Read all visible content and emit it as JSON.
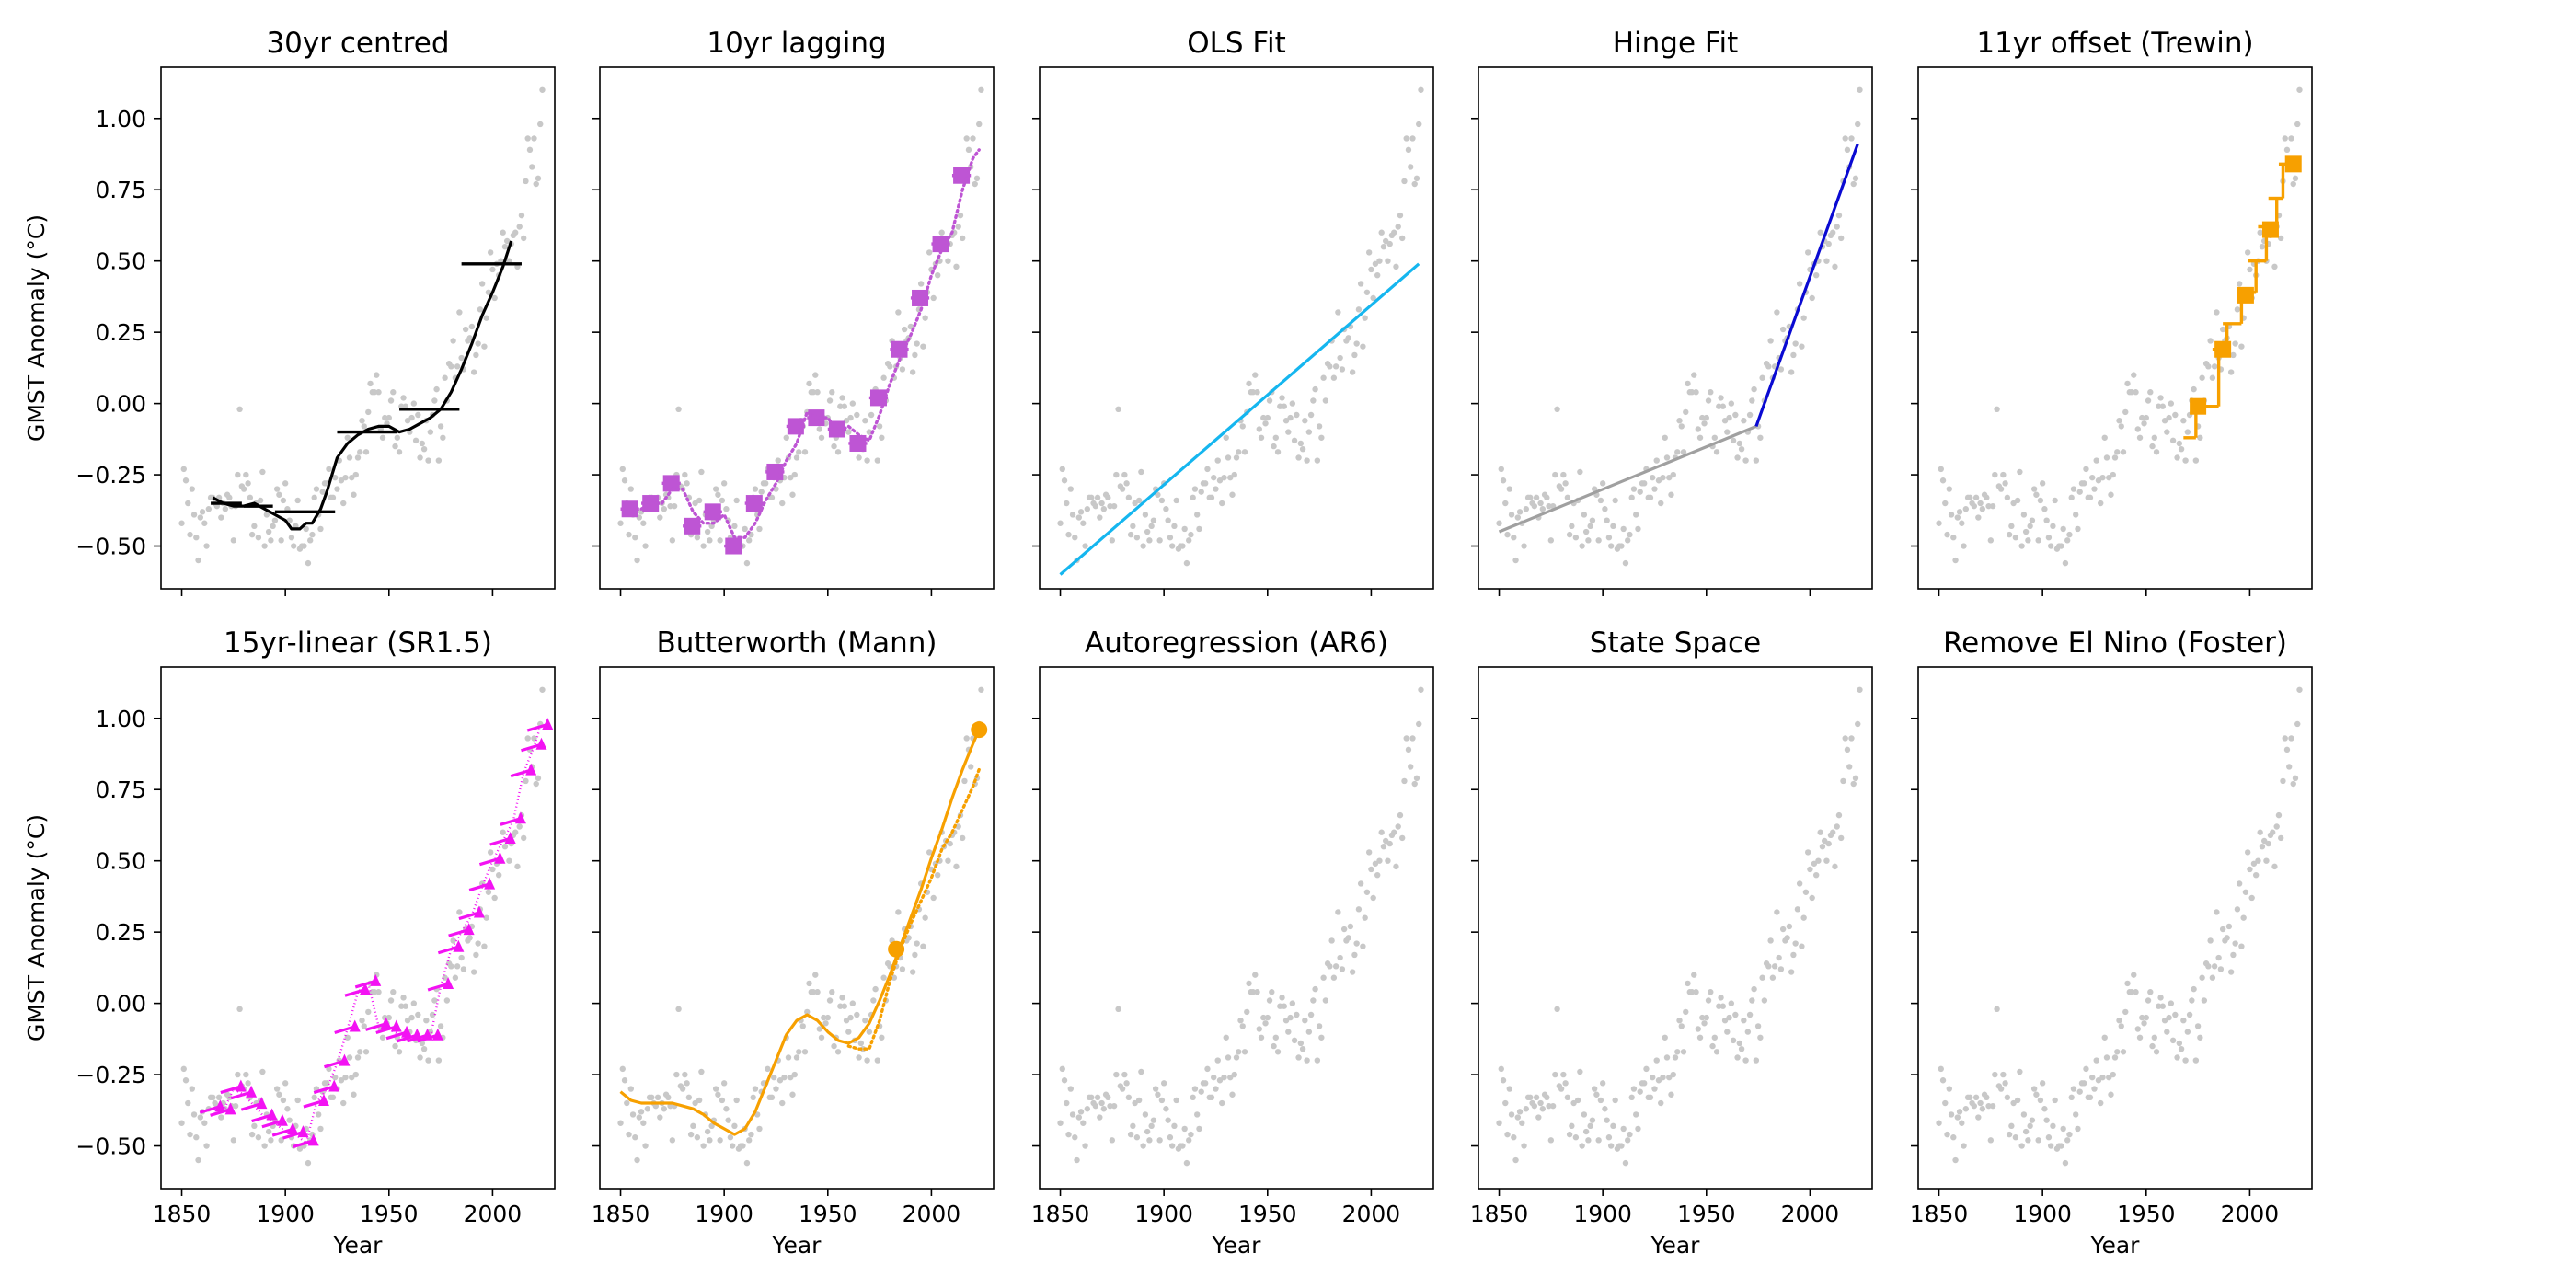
{
  "chart_data": {
    "type": "line",
    "layout": "2x5 grid, shared x and y axes",
    "xlabel": "Year",
    "ylabel": "GMST Anomaly (°C)",
    "xlim": [
      1840,
      2030
    ],
    "ylim": [
      -0.65,
      1.18
    ],
    "xticks": [
      1850,
      1900,
      1950,
      2000
    ],
    "yticks": [
      -0.5,
      -0.25,
      0.0,
      0.25,
      0.5,
      0.75,
      1.0
    ],
    "xtick_labels": [
      "1850",
      "1900",
      "1950",
      "2000"
    ],
    "ytick_labels": [
      "−0.50",
      "−0.25",
      "0.00",
      "0.25",
      "0.50",
      "0.75",
      "1.00"
    ],
    "observations": {
      "style": "light-grey dots, shown in every panel",
      "color": "#c8c8c8",
      "x_start": 1850,
      "y": [
        -0.42,
        -0.23,
        -0.27,
        -0.35,
        -0.46,
        -0.3,
        -0.39,
        -0.47,
        -0.55,
        -0.4,
        -0.38,
        -0.42,
        -0.5,
        -0.37,
        -0.33,
        -0.33,
        -0.35,
        -0.36,
        -0.33,
        -0.4,
        -0.35,
        -0.37,
        -0.32,
        -0.33,
        -0.36,
        -0.48,
        -0.36,
        -0.25,
        -0.02,
        -0.29,
        -0.3,
        -0.25,
        -0.28,
        -0.33,
        -0.46,
        -0.43,
        -0.35,
        -0.47,
        -0.34,
        -0.24,
        -0.5,
        -0.39,
        -0.45,
        -0.48,
        -0.43,
        -0.41,
        -0.3,
        -0.32,
        -0.48,
        -0.34,
        -0.28,
        -0.37,
        -0.41,
        -0.47,
        -0.5,
        -0.43,
        -0.34,
        -0.51,
        -0.5,
        -0.5,
        -0.44,
        -0.56,
        -0.48,
        -0.46,
        -0.33,
        -0.3,
        -0.39,
        -0.44,
        -0.31,
        -0.28,
        -0.28,
        -0.23,
        -0.33,
        -0.33,
        -0.26,
        -0.3,
        -0.2,
        -0.27,
        -0.35,
        -0.26,
        -0.12,
        -0.19,
        -0.26,
        -0.32,
        -0.25,
        -0.19,
        -0.17,
        -0.06,
        -0.08,
        -0.17,
        -0.03,
        0.07,
        0.04,
        0.04,
        0.1,
        0.04,
        -0.09,
        -0.12,
        -0.05,
        -0.07,
        -0.05,
        0.01,
        0.04,
        -0.15,
        -0.12,
        -0.17,
        -0.01,
        0.02,
        -0.01,
        -0.06,
        -0.1,
        -0.05,
        0.0,
        -0.13,
        -0.04,
        -0.19,
        -0.14,
        -0.16,
        -0.06,
        -0.2,
        -0.1,
        -0.04,
        0.01,
        0.05,
        -0.2,
        -0.08,
        -0.12,
        0.09,
        0.01,
        0.14,
        0.13,
        0.22,
        0.09,
        0.13,
        0.32,
        0.16,
        0.12,
        0.26,
        0.22,
        0.23,
        0.27,
        0.11,
        0.17,
        0.21,
        0.33,
        0.42,
        0.2,
        0.3,
        0.39,
        0.53,
        0.47,
        0.37,
        0.49,
        0.45,
        0.5,
        0.6,
        0.55,
        0.57,
        0.5,
        0.56,
        0.59,
        0.6,
        0.48,
        0.62,
        0.66,
        0.58,
        0.78,
        0.93,
        0.89,
        0.83,
        0.93,
        0.77,
        0.79,
        0.98,
        1.1
      ]
    },
    "panels": [
      {
        "title": "30yr centred",
        "color": "#000000",
        "series": [
          {
            "name": "centred 30yr means (period bars)",
            "kind": "hbar",
            "segments": [
              [
                1864,
                1879,
                -0.35
              ],
              [
                1880,
                1894,
                -0.36
              ],
              [
                1895,
                1924,
                -0.38
              ],
              [
                1925,
                1954,
                -0.1
              ],
              [
                1955,
                1984,
                -0.02
              ],
              [
                1985,
                2014,
                0.49
              ]
            ]
          },
          {
            "name": "running 30yr mean",
            "kind": "line",
            "x": [
              1865,
              1870,
              1875,
              1880,
              1885,
              1890,
              1895,
              1900,
              1903,
              1907,
              1910,
              1913,
              1917,
              1920,
              1925,
              1930,
              1935,
              1940,
              1945,
              1950,
              1955,
              1960,
              1965,
              1970,
              1975,
              1980,
              1985,
              1990,
              1995,
              2000,
              2005,
              2009
            ],
            "y": [
              -0.33,
              -0.35,
              -0.36,
              -0.36,
              -0.35,
              -0.37,
              -0.39,
              -0.41,
              -0.44,
              -0.44,
              -0.42,
              -0.42,
              -0.37,
              -0.31,
              -0.19,
              -0.14,
              -0.11,
              -0.09,
              -0.08,
              -0.08,
              -0.1,
              -0.09,
              -0.07,
              -0.05,
              -0.02,
              0.04,
              0.12,
              0.21,
              0.31,
              0.39,
              0.48,
              0.57
            ]
          }
        ]
      },
      {
        "title": "10yr lagging",
        "color": "#be55d4",
        "series": [
          {
            "name": "10yr lagging means",
            "kind": "hbar_with_square",
            "segments": [
              [
                1850,
                1859,
                -0.37
              ],
              [
                1860,
                1869,
                -0.35
              ],
              [
                1870,
                1879,
                -0.28
              ],
              [
                1880,
                1889,
                -0.43
              ],
              [
                1890,
                1899,
                -0.38
              ],
              [
                1900,
                1909,
                -0.5
              ],
              [
                1910,
                1919,
                -0.35
              ],
              [
                1920,
                1929,
                -0.24
              ],
              [
                1930,
                1939,
                -0.08
              ],
              [
                1940,
                1949,
                -0.05
              ],
              [
                1950,
                1959,
                -0.09
              ],
              [
                1960,
                1969,
                -0.14
              ],
              [
                1970,
                1979,
                0.02
              ],
              [
                1980,
                1989,
                0.19
              ],
              [
                1990,
                1999,
                0.37
              ],
              [
                2000,
                2009,
                0.56
              ],
              [
                2010,
                2019,
                0.8
              ]
            ]
          },
          {
            "name": "running 10yr mean (dotted)",
            "kind": "dotted",
            "x": [
              1860,
              1865,
              1870,
              1875,
              1880,
              1885,
              1890,
              1895,
              1900,
              1905,
              1910,
              1915,
              1920,
              1925,
              1930,
              1935,
              1940,
              1945,
              1950,
              1955,
              1960,
              1965,
              1970,
              1975,
              1980,
              1985,
              1990,
              1995,
              2000,
              2005,
              2010,
              2015,
              2020,
              2023
            ],
            "y": [
              -0.37,
              -0.35,
              -0.35,
              -0.3,
              -0.3,
              -0.38,
              -0.42,
              -0.42,
              -0.39,
              -0.47,
              -0.47,
              -0.42,
              -0.34,
              -0.28,
              -0.2,
              -0.14,
              -0.03,
              -0.05,
              -0.05,
              -0.1,
              -0.08,
              -0.11,
              -0.13,
              -0.04,
              0.07,
              0.16,
              0.24,
              0.33,
              0.45,
              0.54,
              0.6,
              0.75,
              0.86,
              0.89
            ]
          }
        ]
      },
      {
        "title": "OLS Fit",
        "color": "#15b6ef",
        "series": [
          {
            "name": "OLS trend",
            "kind": "line",
            "x": [
              1850,
              2023
            ],
            "y": [
              -0.6,
              0.49
            ]
          }
        ]
      },
      {
        "title": "Hinge Fit",
        "color": "#0a0ad2",
        "series": [
          {
            "name": "pre-hinge",
            "kind": "line",
            "color": "#a0a0a0",
            "x": [
              1850,
              1974
            ],
            "y": [
              -0.45,
              -0.08
            ]
          },
          {
            "name": "post-hinge",
            "kind": "line",
            "color": "#0a0ad2",
            "x": [
              1974,
              2023
            ],
            "y": [
              -0.08,
              0.91
            ]
          }
        ]
      },
      {
        "title": "11yr offset (Trewin)",
        "color": "#f7a000",
        "series": [
          {
            "name": "offset steps",
            "kind": "step_squares",
            "steps": [
              [
                1968,
                1974,
                -0.12
              ],
              [
                1974,
                1985,
                -0.01
              ],
              [
                1982,
                1989,
                0.19
              ],
              [
                1987,
                1996,
                0.28
              ],
              [
                1994,
                2003,
                0.39
              ],
              [
                1999,
                2008,
                0.5
              ],
              [
                2004,
                2013,
                0.62
              ],
              [
                2009,
                2016,
                0.72
              ],
              [
                2014,
                2022,
                0.84
              ]
            ],
            "squares": [
              [
                1975,
                -0.01
              ],
              [
                1987,
                0.19
              ],
              [
                1998,
                0.38
              ],
              [
                2010,
                0.61
              ],
              [
                2021,
                0.84
              ]
            ]
          }
        ]
      },
      {
        "title": "15yr-linear (SR1.5)",
        "color": "#f312f3",
        "series": [
          {
            "name": "15yr linear trend endpoints",
            "kind": "triangles",
            "x": [
              1865,
              1870,
              1875,
              1880,
              1885,
              1890,
              1895,
              1900,
              1905,
              1910,
              1915,
              1920,
              1925,
              1930,
              1935,
              1940,
              1945,
              1950,
              1955,
              1960,
              1965,
              1970,
              1975,
              1980,
              1985,
              1990,
              1995,
              2000,
              2005,
              2010,
              2015,
              2020,
              2023
            ],
            "y": [
              -0.37,
              -0.38,
              -0.3,
              -0.32,
              -0.36,
              -0.4,
              -0.42,
              -0.45,
              -0.46,
              -0.49,
              -0.35,
              -0.3,
              -0.21,
              -0.09,
              0.04,
              0.07,
              -0.08,
              -0.09,
              -0.11,
              -0.12,
              -0.12,
              -0.12,
              0.06,
              0.19,
              0.25,
              0.31,
              0.41,
              0.5,
              0.57,
              0.64,
              0.81,
              0.9,
              0.97
            ]
          }
        ]
      },
      {
        "title": "Butterworth (Mann)",
        "color": "#f7a000",
        "series": [
          {
            "name": "Butterworth smooth",
            "kind": "line",
            "x": [
              1850,
              1855,
              1860,
              1865,
              1870,
              1875,
              1880,
              1885,
              1890,
              1895,
              1900,
              1905,
              1910,
              1915,
              1920,
              1925,
              1930,
              1935,
              1940,
              1945,
              1950,
              1955,
              1960,
              1965,
              1970,
              1975,
              1980,
              1985,
              1990,
              1995,
              2000,
              2005,
              2010,
              2015,
              2020,
              2023
            ],
            "y": [
              -0.31,
              -0.34,
              -0.35,
              -0.35,
              -0.35,
              -0.35,
              -0.36,
              -0.37,
              -0.39,
              -0.42,
              -0.44,
              -0.46,
              -0.44,
              -0.38,
              -0.29,
              -0.2,
              -0.11,
              -0.06,
              -0.04,
              -0.06,
              -0.1,
              -0.13,
              -0.14,
              -0.12,
              -0.07,
              0.01,
              0.1,
              0.2,
              0.3,
              0.4,
              0.51,
              0.61,
              0.72,
              0.82,
              0.91,
              0.96
            ]
          },
          {
            "name": "Butterworth endpoint track",
            "kind": "dotted",
            "x": [
              1960,
              1965,
              1970,
              1975,
              1980,
              1985,
              1990,
              1995,
              2000,
              2005,
              2010,
              2015,
              2020,
              2023
            ],
            "y": [
              -0.15,
              -0.16,
              -0.16,
              -0.06,
              0.08,
              0.19,
              0.28,
              0.36,
              0.44,
              0.54,
              0.6,
              0.68,
              0.76,
              0.82
            ]
          },
          {
            "name": "endpoints",
            "kind": "dots",
            "x": [
              1983,
              2023
            ],
            "y": [
              0.19,
              0.96
            ]
          }
        ]
      },
      {
        "title": "Autoregression (AR6)",
        "color": "#c8c8c8",
        "series": []
      },
      {
        "title": "State Space",
        "color": "#c8c8c8",
        "series": []
      },
      {
        "title": "Remove El Nino (Foster)",
        "color": "#c8c8c8",
        "series": []
      }
    ]
  }
}
